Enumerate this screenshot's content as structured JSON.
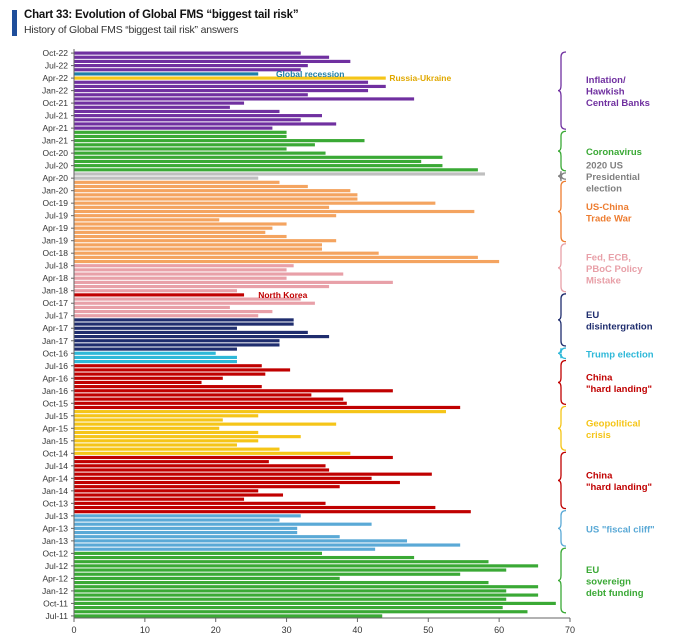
{
  "chart_data": {
    "type": "bar",
    "orientation": "horizontal",
    "title": "Chart 33: Evolution of Global FMS “biggest tail risk”",
    "subtitle": "History of Global FMS “biggest tail risk” answers",
    "xlim": [
      0,
      70
    ],
    "x_ticks": [
      0,
      10,
      20,
      30,
      40,
      50,
      60,
      70
    ],
    "y_tick_labels": [
      "Oct-22",
      "Jul-22",
      "Apr-22",
      "Jan-22",
      "Oct-21",
      "Jul-21",
      "Apr-21",
      "Jan-21",
      "Oct-20",
      "Jul-20",
      "Apr-20",
      "Jan-20",
      "Oct-19",
      "Jul-19",
      "Apr-19",
      "Jan-19",
      "Oct-18",
      "Jul-18",
      "Apr-18",
      "Jan-18",
      "Oct-17",
      "Jul-17",
      "Apr-17",
      "Jan-17",
      "Oct-16",
      "Jul-16",
      "Apr-16",
      "Jan-16",
      "Oct-15",
      "Jul-15",
      "Apr-15",
      "Jan-15",
      "Oct-14",
      "Jul-14",
      "Apr-14",
      "Jan-14",
      "Oct-13",
      "Jul-13",
      "Apr-13",
      "Jan-13",
      "Oct-12",
      "Jul-12",
      "Apr-12",
      "Jan-12",
      "Oct-11",
      "Jul-11"
    ],
    "bars": [
      {
        "v": 32,
        "c": "#7030a0"
      },
      {
        "v": 36,
        "c": "#7030a0"
      },
      {
        "v": 39,
        "c": "#7030a0"
      },
      {
        "v": 33,
        "c": "#7030a0"
      },
      {
        "v": 32,
        "c": "#7030a0"
      },
      {
        "v": 26,
        "c": "#1f7fa8"
      },
      {
        "v": 44,
        "c": "#f5c518"
      },
      {
        "v": 41.5,
        "c": "#7030a0"
      },
      {
        "v": 44,
        "c": "#7030a0"
      },
      {
        "v": 41.5,
        "c": "#7030a0"
      },
      {
        "v": 33,
        "c": "#7030a0"
      },
      {
        "v": 48,
        "c": "#7030a0"
      },
      {
        "v": 24,
        "c": "#7030a0"
      },
      {
        "v": 22,
        "c": "#7030a0"
      },
      {
        "v": 29,
        "c": "#7030a0"
      },
      {
        "v": 35,
        "c": "#7030a0"
      },
      {
        "v": 32,
        "c": "#7030a0"
      },
      {
        "v": 37,
        "c": "#7030a0"
      },
      {
        "v": 28,
        "c": "#7030a0"
      },
      {
        "v": 30,
        "c": "#3aa935"
      },
      {
        "v": 30,
        "c": "#3aa935"
      },
      {
        "v": 41,
        "c": "#3aa935"
      },
      {
        "v": 34,
        "c": "#3aa935"
      },
      {
        "v": 30,
        "c": "#3aa935"
      },
      {
        "v": 35.5,
        "c": "#3aa935"
      },
      {
        "v": 52,
        "c": "#3aa935"
      },
      {
        "v": 49,
        "c": "#3aa935"
      },
      {
        "v": 52,
        "c": "#3aa935"
      },
      {
        "v": 57,
        "c": "#3aa935"
      },
      {
        "v": 58,
        "c": "#bfbfbf"
      },
      {
        "v": 26,
        "c": "#bfbfbf"
      },
      {
        "v": 29,
        "c": "#f4a460"
      },
      {
        "v": 33,
        "c": "#f4a460"
      },
      {
        "v": 39,
        "c": "#f4a460"
      },
      {
        "v": 40,
        "c": "#f4a460"
      },
      {
        "v": 40,
        "c": "#f4a460"
      },
      {
        "v": 51,
        "c": "#f4a460"
      },
      {
        "v": 36,
        "c": "#f4a460"
      },
      {
        "v": 56.5,
        "c": "#f4a460"
      },
      {
        "v": 37,
        "c": "#f4a460"
      },
      {
        "v": 20.5,
        "c": "#f4a460"
      },
      {
        "v": 30,
        "c": "#f4a460"
      },
      {
        "v": 28,
        "c": "#f4a460"
      },
      {
        "v": 27,
        "c": "#f4a460"
      },
      {
        "v": 30,
        "c": "#f4a460"
      },
      {
        "v": 37,
        "c": "#f4a460"
      },
      {
        "v": 35,
        "c": "#f4a460"
      },
      {
        "v": 35,
        "c": "#f4a460"
      },
      {
        "v": 43,
        "c": "#f4a460"
      },
      {
        "v": 57,
        "c": "#f4a460"
      },
      {
        "v": 60,
        "c": "#f4a460"
      },
      {
        "v": 31,
        "c": "#e8a0a8"
      },
      {
        "v": 30,
        "c": "#e8a0a8"
      },
      {
        "v": 38,
        "c": "#e8a0a8"
      },
      {
        "v": 30,
        "c": "#e8a0a8"
      },
      {
        "v": 45,
        "c": "#e8a0a8"
      },
      {
        "v": 36,
        "c": "#e8a0a8"
      },
      {
        "v": 23,
        "c": "#e8a0a8"
      },
      {
        "v": 24,
        "c": "#c00000"
      },
      {
        "v": 32,
        "c": "#e8a0a8"
      },
      {
        "v": 34,
        "c": "#e8a0a8"
      },
      {
        "v": 22,
        "c": "#e8a0a8"
      },
      {
        "v": 28,
        "c": "#e8a0a8"
      },
      {
        "v": 26,
        "c": "#e8a0a8"
      },
      {
        "v": 31,
        "c": "#1f2d6e"
      },
      {
        "v": 31,
        "c": "#1f2d6e"
      },
      {
        "v": 23,
        "c": "#1f2d6e"
      },
      {
        "v": 33,
        "c": "#1f2d6e"
      },
      {
        "v": 36,
        "c": "#1f2d6e"
      },
      {
        "v": 29,
        "c": "#1f2d6e"
      },
      {
        "v": 29,
        "c": "#1f2d6e"
      },
      {
        "v": 23,
        "c": "#1f2d6e"
      },
      {
        "v": 20,
        "c": "#2eb8d8"
      },
      {
        "v": 23,
        "c": "#2eb8d8"
      },
      {
        "v": 23,
        "c": "#2eb8d8"
      },
      {
        "v": 26.5,
        "c": "#c00000"
      },
      {
        "v": 30.5,
        "c": "#c00000"
      },
      {
        "v": 27,
        "c": "#c00000"
      },
      {
        "v": 21,
        "c": "#c00000"
      },
      {
        "v": 18,
        "c": "#c00000"
      },
      {
        "v": 26.5,
        "c": "#c00000"
      },
      {
        "v": 45,
        "c": "#c00000"
      },
      {
        "v": 33.5,
        "c": "#c00000"
      },
      {
        "v": 38,
        "c": "#c00000"
      },
      {
        "v": 38.5,
        "c": "#c00000"
      },
      {
        "v": 54.5,
        "c": "#c00000"
      },
      {
        "v": 52.5,
        "c": "#f5c518"
      },
      {
        "v": 26,
        "c": "#f5c518"
      },
      {
        "v": 21,
        "c": "#f5c518"
      },
      {
        "v": 37,
        "c": "#f5c518"
      },
      {
        "v": 20.5,
        "c": "#f5c518"
      },
      {
        "v": 26,
        "c": "#f5c518"
      },
      {
        "v": 32,
        "c": "#f5c518"
      },
      {
        "v": 26,
        "c": "#f5c518"
      },
      {
        "v": 23,
        "c": "#f5c518"
      },
      {
        "v": 29,
        "c": "#f5c518"
      },
      {
        "v": 39,
        "c": "#f5c518"
      },
      {
        "v": 45,
        "c": "#c00000"
      },
      {
        "v": 27.5,
        "c": "#c00000"
      },
      {
        "v": 35.5,
        "c": "#c00000"
      },
      {
        "v": 36,
        "c": "#c00000"
      },
      {
        "v": 50.5,
        "c": "#c00000"
      },
      {
        "v": 42,
        "c": "#c00000"
      },
      {
        "v": 46,
        "c": "#c00000"
      },
      {
        "v": 37.5,
        "c": "#c00000"
      },
      {
        "v": 26,
        "c": "#c00000"
      },
      {
        "v": 29.5,
        "c": "#c00000"
      },
      {
        "v": 24,
        "c": "#c00000"
      },
      {
        "v": 35.5,
        "c": "#c00000"
      },
      {
        "v": 51,
        "c": "#c00000"
      },
      {
        "v": 56,
        "c": "#c00000"
      },
      {
        "v": 32,
        "c": "#5aa9d6"
      },
      {
        "v": 29,
        "c": "#5aa9d6"
      },
      {
        "v": 42,
        "c": "#5aa9d6"
      },
      {
        "v": 31.5,
        "c": "#5aa9d6"
      },
      {
        "v": 31.5,
        "c": "#5aa9d6"
      },
      {
        "v": 37.5,
        "c": "#5aa9d6"
      },
      {
        "v": 47,
        "c": "#5aa9d6"
      },
      {
        "v": 54.5,
        "c": "#5aa9d6"
      },
      {
        "v": 42.5,
        "c": "#5aa9d6"
      },
      {
        "v": 35,
        "c": "#3aa935"
      },
      {
        "v": 48,
        "c": "#3aa935"
      },
      {
        "v": 58.5,
        "c": "#3aa935"
      },
      {
        "v": 65.5,
        "c": "#3aa935"
      },
      {
        "v": 61,
        "c": "#3aa935"
      },
      {
        "v": 54.5,
        "c": "#3aa935"
      },
      {
        "v": 37.5,
        "c": "#3aa935"
      },
      {
        "v": 58.5,
        "c": "#3aa935"
      },
      {
        "v": 65.5,
        "c": "#3aa935"
      },
      {
        "v": 61,
        "c": "#3aa935"
      },
      {
        "v": 65.5,
        "c": "#3aa935"
      },
      {
        "v": 61,
        "c": "#3aa935"
      },
      {
        "v": 68,
        "c": "#3aa935"
      },
      {
        "v": 60.5,
        "c": "#3aa935"
      },
      {
        "v": 64,
        "c": "#3aa935"
      },
      {
        "v": 43.5,
        "c": "#3aa935"
      }
    ],
    "annotations": [
      {
        "text": "Global recession",
        "color": "#1f7fa8",
        "bar": 5,
        "x": 28.5
      },
      {
        "text": "Russia-Ukraine",
        "color": "#e0a800",
        "bar": 6,
        "x": 44.5
      },
      {
        "text": "North Korea",
        "color": "#c00000",
        "bar": 58,
        "x": 26
      }
    ],
    "groups": [
      {
        "lines": [
          "Inflation/",
          "Hawkish",
          "Central Banks"
        ],
        "color": "#7030a0",
        "from": 0,
        "to": 18
      },
      {
        "lines": [
          "Coronavirus"
        ],
        "color": "#3aa935",
        "from": 19,
        "to": 28
      },
      {
        "lines": [
          "2020 US",
          "Presidential",
          "election"
        ],
        "color": "#808080",
        "from": 29,
        "to": 30
      },
      {
        "lines": [
          "US-China",
          "Trade War"
        ],
        "color": "#ed7d31",
        "from": 31,
        "to": 45
      },
      {
        "lines": [
          "Fed, ECB,",
          "PBoC Policy",
          "Mistake"
        ],
        "color": "#e8a0a8",
        "from": 46,
        "to": 57
      },
      {
        "lines": [
          "EU",
          "disintergration"
        ],
        "color": "#1f2d6e",
        "from": 58,
        "to": 70
      },
      {
        "lines": [
          "Trump election"
        ],
        "color": "#2eb8d8",
        "from": 71,
        "to": 73
      },
      {
        "lines": [
          "China",
          "\"hard landing\""
        ],
        "color": "#c00000",
        "from": 74,
        "to": 84
      },
      {
        "lines": [
          "Geopolitical",
          "crisis"
        ],
        "color": "#f5c518",
        "from": 85,
        "to": 95
      },
      {
        "lines": [
          "China",
          "\"hard landing\""
        ],
        "color": "#c00000",
        "from": 96,
        "to": 109
      },
      {
        "lines": [
          "US \"fiscal cliff\""
        ],
        "color": "#5aa9d6",
        "from": 110,
        "to": 118
      },
      {
        "lines": [
          "EU",
          "sovereign",
          "debt funding"
        ],
        "color": "#3aa935",
        "from": 119,
        "to": 134
      }
    ]
  }
}
